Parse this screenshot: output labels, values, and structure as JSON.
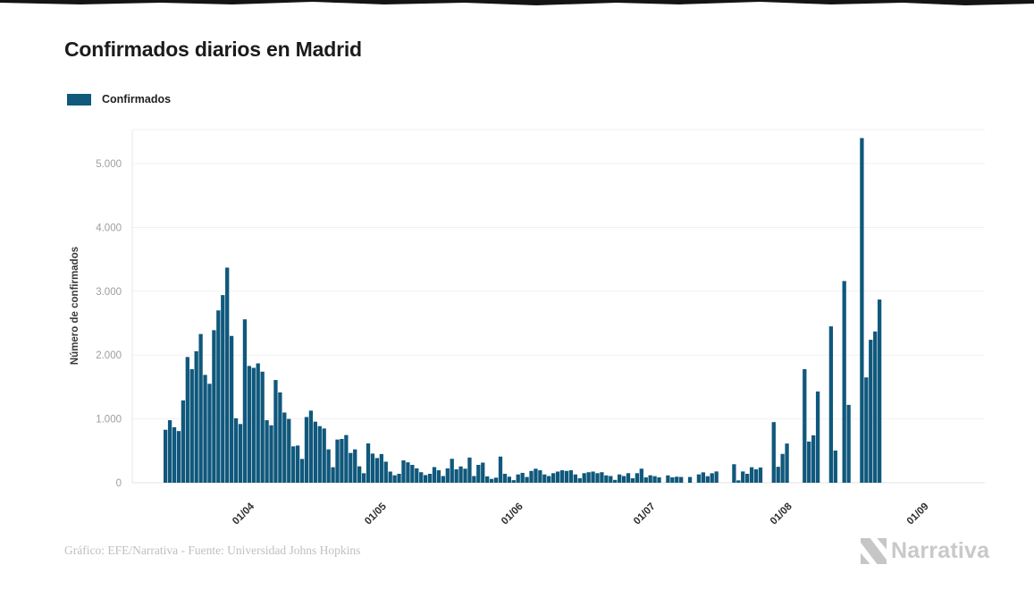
{
  "page": {
    "title": "Confirmados diarios en Madrid",
    "footer": "Gráfico: EFE/Narrativa - Fuente: Universidad Johns Hopkins",
    "brand": "Narrativa"
  },
  "legend": {
    "label": "Confirmados",
    "color": "#10587c"
  },
  "chart_data": {
    "type": "bar",
    "title": "Confirmados diarios en Madrid",
    "series_name": "Confirmados",
    "xlabel": "",
    "ylabel": "Número de confirmados",
    "ylim": [
      0,
      5500
    ],
    "grid": true,
    "legend_position": "top-left",
    "bar_color": "#10587c",
    "y_ticks": [
      {
        "value": 0,
        "label": "0"
      },
      {
        "value": 1000,
        "label": "1.000"
      },
      {
        "value": 2000,
        "label": "2.000"
      },
      {
        "value": 3000,
        "label": "3.000"
      },
      {
        "value": 4000,
        "label": "4.000"
      },
      {
        "value": 5000,
        "label": "5.000"
      }
    ],
    "x_ticks": [
      {
        "label": "01/04",
        "index": 19
      },
      {
        "label": "01/05",
        "index": 49
      },
      {
        "label": "01/06",
        "index": 80
      },
      {
        "label": "01/07",
        "index": 110
      },
      {
        "label": "01/08",
        "index": 141
      },
      {
        "label": "01/09",
        "index": 172
      }
    ],
    "dates": [
      "13/03",
      "14/03",
      "15/03",
      "16/03",
      "17/03",
      "18/03",
      "19/03",
      "20/03",
      "21/03",
      "22/03",
      "23/03",
      "24/03",
      "25/03",
      "26/03",
      "27/03",
      "28/03",
      "29/03",
      "30/03",
      "31/03",
      "01/04",
      "02/04",
      "03/04",
      "04/04",
      "05/04",
      "06/04",
      "07/04",
      "08/04",
      "09/04",
      "10/04",
      "11/04",
      "12/04",
      "13/04",
      "14/04",
      "15/04",
      "16/04",
      "17/04",
      "18/04",
      "19/04",
      "20/04",
      "21/04",
      "22/04",
      "23/04",
      "24/04",
      "25/04",
      "26/04",
      "27/04",
      "28/04",
      "29/04",
      "30/04",
      "01/05",
      "02/05",
      "03/05",
      "04/05",
      "05/05",
      "06/05",
      "07/05",
      "08/05",
      "09/05",
      "10/05",
      "11/05",
      "12/05",
      "13/05",
      "14/05",
      "15/05",
      "16/05",
      "17/05",
      "18/05",
      "19/05",
      "20/05",
      "21/05",
      "22/05",
      "23/05",
      "24/05",
      "25/05",
      "26/05",
      "27/05",
      "28/05",
      "29/05",
      "30/05",
      "31/05",
      "01/06",
      "02/06",
      "03/06",
      "04/06",
      "05/06",
      "06/06",
      "07/06",
      "08/06",
      "09/06",
      "10/06",
      "11/06",
      "12/06",
      "13/06",
      "14/06",
      "15/06",
      "16/06",
      "17/06",
      "18/06",
      "19/06",
      "20/06",
      "21/06",
      "22/06",
      "23/06",
      "24/06",
      "25/06",
      "26/06",
      "27/06",
      "28/06",
      "29/06",
      "30/06",
      "01/07",
      "02/07",
      "03/07",
      "04/07",
      "05/07",
      "06/07",
      "07/07",
      "08/07",
      "09/07",
      "10/07",
      "11/07",
      "12/07",
      "13/07",
      "14/07",
      "15/07",
      "16/07",
      "17/07",
      "18/07",
      "19/07",
      "20/07",
      "21/07",
      "22/07",
      "23/07",
      "24/07",
      "25/07",
      "26/07",
      "27/07",
      "28/07",
      "29/07",
      "30/07",
      "31/07",
      "01/08",
      "02/08",
      "03/08",
      "04/08",
      "05/08",
      "06/08",
      "07/08",
      "08/08",
      "09/08",
      "10/08",
      "11/08",
      "12/08",
      "13/08",
      "14/08",
      "15/08",
      "16/08",
      "17/08",
      "18/08",
      "19/08",
      "20/08",
      "21/08",
      "22/08"
    ],
    "values": [
      830,
      980,
      870,
      810,
      1290,
      1970,
      1780,
      2060,
      2330,
      1690,
      1550,
      2390,
      2700,
      2940,
      3370,
      2300,
      1010,
      920,
      2560,
      1830,
      1800,
      1870,
      1740,
      980,
      900,
      1610,
      1415,
      1100,
      1000,
      570,
      583,
      373,
      1030,
      1130,
      957,
      887,
      850,
      523,
      243,
      677,
      686,
      747,
      467,
      523,
      257,
      149,
      616,
      457,
      387,
      450,
      330,
      175,
      117,
      140,
      350,
      320,
      280,
      225,
      165,
      120,
      140,
      245,
      195,
      105,
      225,
      375,
      210,
      255,
      220,
      395,
      105,
      280,
      315,
      100,
      60,
      80,
      410,
      140,
      95,
      40,
      130,
      155,
      90,
      185,
      220,
      195,
      130,
      105,
      150,
      175,
      195,
      185,
      195,
      130,
      70,
      150,
      165,
      175,
      150,
      165,
      115,
      105,
      45,
      130,
      105,
      150,
      70,
      150,
      220,
      84,
      117,
      103,
      84,
      0,
      115,
      85,
      95,
      90,
      0,
      90,
      0,
      131,
      163,
      103,
      149,
      177,
      0,
      0,
      0,
      290,
      37,
      177,
      140,
      243,
      210,
      238,
      0,
      0,
      950,
      250,
      452,
      614,
      0,
      0,
      0,
      1780,
      645,
      742,
      1430,
      0,
      0,
      2450,
      504,
      0,
      3160,
      1220,
      0,
      0,
      5400,
      1650,
      2240,
      2370,
      2870
    ]
  }
}
